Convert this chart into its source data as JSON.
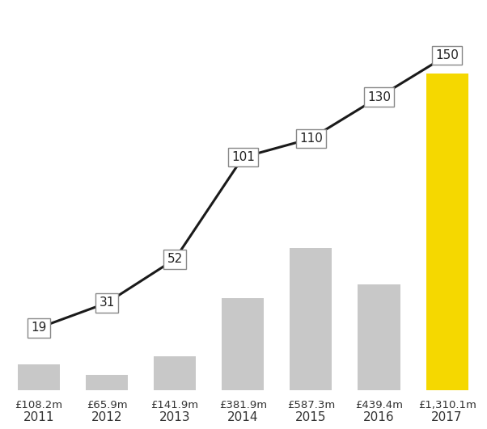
{
  "years": [
    "2011",
    "2012",
    "2013",
    "2014",
    "2015",
    "2016",
    "2017"
  ],
  "bar_values": [
    108.2,
    65.9,
    141.9,
    381.9,
    587.3,
    439.4,
    1310.1
  ],
  "bar_labels": [
    "£108.2m",
    "£65.9m",
    "£141.9m",
    "£381.9m",
    "£587.3m",
    "£439.4m",
    "£1,310.1m"
  ],
  "bar_colors": [
    "#c8c8c8",
    "#c8c8c8",
    "#c8c8c8",
    "#c8c8c8",
    "#c8c8c8",
    "#c8c8c8",
    "#f5d800"
  ],
  "line_values": [
    19,
    31,
    52,
    101,
    110,
    130,
    150
  ],
  "background_color": "#ffffff",
  "line_color": "#1a1a1a",
  "box_facecolor": "#ffffff",
  "box_edgecolor": "#888888",
  "label_fontsize": 9.5,
  "year_fontsize": 11,
  "line_label_fontsize": 11,
  "bar_ylim_max": 1600,
  "line_ylim_max": 175,
  "line_ylim_neg": 28
}
